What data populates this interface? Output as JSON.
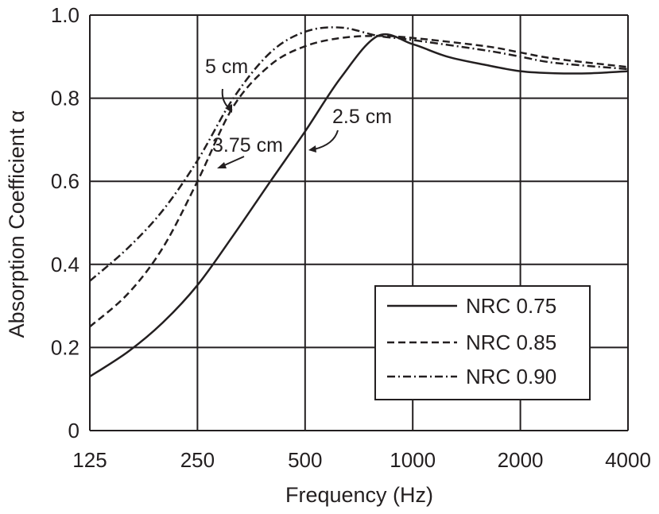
{
  "chart_data": {
    "type": "line",
    "title": "",
    "xlabel": "Frequency (Hz)",
    "ylabel": "Absorption Coefficient α",
    "x_scale": "log",
    "xlim": [
      125,
      4000
    ],
    "ylim": [
      0,
      1.0
    ],
    "x_ticks": [
      125,
      250,
      500,
      1000,
      2000,
      4000
    ],
    "x_tick_labels": [
      "125",
      "250",
      "500",
      "1000",
      "2000",
      "4000"
    ],
    "y_ticks": [
      0,
      0.2,
      0.4,
      0.6,
      0.8,
      1.0
    ],
    "y_tick_labels": [
      "0",
      "0.2",
      "0.4",
      "0.6",
      "0.8",
      "1.0"
    ],
    "grid": true,
    "legend_position": "bottom-right",
    "series": [
      {
        "name": "NRC 0.75",
        "style": "solid",
        "x": [
          125,
          160,
          200,
          250,
          315,
          400,
          500,
          630,
          800,
          1000,
          1250,
          1600,
          2000,
          2500,
          3150,
          4000
        ],
        "y": [
          0.13,
          0.19,
          0.26,
          0.35,
          0.47,
          0.6,
          0.72,
          0.85,
          0.95,
          0.93,
          0.9,
          0.88,
          0.865,
          0.86,
          0.86,
          0.865
        ]
      },
      {
        "name": "NRC 0.85",
        "style": "dashed",
        "x": [
          125,
          160,
          200,
          250,
          315,
          400,
          500,
          630,
          800,
          1000,
          1600,
          2000,
          2500,
          4000
        ],
        "y": [
          0.25,
          0.33,
          0.44,
          0.6,
          0.78,
          0.88,
          0.925,
          0.945,
          0.95,
          0.945,
          0.925,
          0.91,
          0.895,
          0.875
        ]
      },
      {
        "name": "NRC 0.90",
        "style": "dashdot",
        "x": [
          125,
          160,
          200,
          250,
          315,
          400,
          500,
          630,
          800,
          1000,
          1600,
          2000,
          2500,
          4000
        ],
        "y": [
          0.36,
          0.44,
          0.53,
          0.65,
          0.8,
          0.91,
          0.96,
          0.97,
          0.95,
          0.94,
          0.915,
          0.9,
          0.885,
          0.87
        ]
      }
    ],
    "annotations": [
      {
        "text": "5 cm",
        "target_series": "NRC 0.90"
      },
      {
        "text": "3.75 cm",
        "target_series": "NRC 0.85"
      },
      {
        "text": "2.5 cm",
        "target_series": "NRC 0.75"
      }
    ]
  }
}
